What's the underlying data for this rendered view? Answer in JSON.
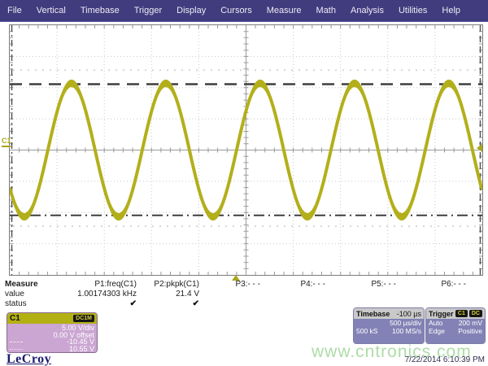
{
  "menu": {
    "items": [
      "File",
      "Vertical",
      "Timebase",
      "Trigger",
      "Display",
      "Cursors",
      "Measure",
      "Math",
      "Analysis",
      "Utilities",
      "Help"
    ]
  },
  "grid": {
    "channel_marker": "C1"
  },
  "measure": {
    "row_measure": "Measure",
    "row_value": "value",
    "row_status": "status",
    "columns": [
      {
        "param": "P1:freq(C1)",
        "value": "1.00174303 kHz",
        "status": "✔"
      },
      {
        "param": "P2:pkpk(C1)",
        "value": "21.4 V",
        "status": "✔"
      },
      {
        "param": "P3:- - -",
        "value": "",
        "status": ""
      },
      {
        "param": "P4:- - -",
        "value": "",
        "status": ""
      },
      {
        "param": "P5:- - -",
        "value": "",
        "status": ""
      },
      {
        "param": "P6:- - -",
        "value": "",
        "status": ""
      }
    ]
  },
  "channel_box": {
    "name": "C1",
    "coupling_badge": "DC1M",
    "vdiv": "5.00 V/div",
    "offset": "0.00 V offset",
    "level_neg": "-10.45 V",
    "level_pos": "10.55 V"
  },
  "timebase_box": {
    "title": "Timebase",
    "delay": "-100 µs",
    "per_div": "500 µs/div",
    "samples": "500 kS",
    "rate": "100 MS/s"
  },
  "trigger_box": {
    "title": "Trigger",
    "badges": [
      "C1",
      "DC"
    ],
    "mode": "Auto",
    "level": "200 mV",
    "type": "Edge",
    "slope": "Positive"
  },
  "footer": {
    "logo": "LeCroy",
    "watermark": "www.cntronics.com",
    "timestamp": "7/22/2014 6:10:39 PM"
  },
  "colors": {
    "menubar": "#413c7e",
    "trace": "#b3af1b",
    "channel_header": "#b3b014",
    "descriptor_body": "#8282b6",
    "channel_body": "#cba6d2"
  },
  "chart_data": {
    "type": "line",
    "waveform": "sine",
    "h_divisions": 10,
    "v_divisions": 8,
    "minor_ticks_per_div": 5,
    "time_per_div_us": 500,
    "volts_per_div": 5.0,
    "frequency_hz": 1001.74303,
    "peak_to_peak_v": 21.4,
    "offset_v": 0.0,
    "trigger_delay_us": -100,
    "trigger_level_v": 0.2,
    "level_markers_v": {
      "dashed_top": 10.55,
      "dashdot_bottom": -10.45
    },
    "aux_dotted_levels_v": [
      12.8,
      -12.2
    ],
    "noise_band_v": 0.5,
    "trace_color": "#b3af1b"
  }
}
